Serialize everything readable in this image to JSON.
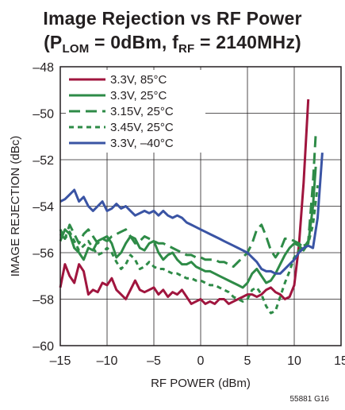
{
  "title_line1": "Image Rejection vs RF Power",
  "title_line2": {
    "open": "(P",
    "sub1": "LOM",
    "mid": " = 0dBm, f",
    "sub2": "RF",
    "close": " = 2140MHz)"
  },
  "figure_id": "55881 G16",
  "chart_data": {
    "type": "line",
    "title": "Image Rejection vs RF Power (PLOM = 0dBm, fRF = 2140MHz)",
    "xlabel": "RF POWER (dBm)",
    "ylabel": "IMAGE REJECTION (dBc)",
    "xlim": [
      -15,
      15
    ],
    "ylim": [
      -60,
      -48
    ],
    "xticks": [
      -15,
      -10,
      -5,
      0,
      5,
      10,
      15
    ],
    "xtick_labels": [
      "–15",
      "–10",
      "–5",
      "0",
      "5",
      "10",
      "15"
    ],
    "yticks": [
      -60,
      -58,
      -56,
      -54,
      -52,
      -50,
      -48
    ],
    "ytick_labels": [
      "–60",
      "–58",
      "–56",
      "–54",
      "–52",
      "–50",
      "–48"
    ],
    "grid": true,
    "legend_position": "top-left",
    "series": [
      {
        "name": "3.3V, 85°C",
        "color": "#a0153e",
        "dash": "solid",
        "points": [
          [
            -15,
            -57.5
          ],
          [
            -14.5,
            -56.5
          ],
          [
            -14,
            -57.0
          ],
          [
            -13.5,
            -57.3
          ],
          [
            -13,
            -56.5
          ],
          [
            -12.5,
            -56.8
          ],
          [
            -12,
            -57.8
          ],
          [
            -11.5,
            -57.6
          ],
          [
            -11,
            -57.7
          ],
          [
            -10.5,
            -57.3
          ],
          [
            -10,
            -57.4
          ],
          [
            -9.5,
            -57.1
          ],
          [
            -9,
            -57.6
          ],
          [
            -8.5,
            -57.8
          ],
          [
            -8,
            -58.0
          ],
          [
            -7.5,
            -57.6
          ],
          [
            -7,
            -57.2
          ],
          [
            -6.5,
            -57.6
          ],
          [
            -6,
            -57.7
          ],
          [
            -5.5,
            -57.6
          ],
          [
            -5,
            -57.5
          ],
          [
            -4.5,
            -57.8
          ],
          [
            -4,
            -57.6
          ],
          [
            -3.5,
            -57.9
          ],
          [
            -3,
            -57.7
          ],
          [
            -2.5,
            -57.8
          ],
          [
            -2,
            -57.6
          ],
          [
            -1.5,
            -57.9
          ],
          [
            -1,
            -58.2
          ],
          [
            -0.5,
            -58.1
          ],
          [
            0,
            -58.0
          ],
          [
            0.5,
            -58.2
          ],
          [
            1,
            -58.1
          ],
          [
            1.5,
            -58.2
          ],
          [
            2,
            -58.0
          ],
          [
            2.5,
            -58.0
          ],
          [
            3,
            -58.2
          ],
          [
            3.5,
            -58.1
          ],
          [
            4,
            -58.0
          ],
          [
            4.5,
            -57.9
          ],
          [
            5,
            -57.8
          ],
          [
            5.5,
            -57.8
          ],
          [
            6,
            -57.9
          ],
          [
            6.5,
            -57.8
          ],
          [
            7,
            -57.6
          ],
          [
            7.5,
            -57.5
          ],
          [
            8,
            -57.7
          ],
          [
            8.5,
            -57.8
          ],
          [
            9,
            -58.0
          ],
          [
            9.5,
            -57.9
          ],
          [
            10,
            -57.4
          ],
          [
            10.5,
            -55.7
          ],
          [
            11,
            -53.0
          ],
          [
            11.5,
            -49.4
          ]
        ]
      },
      {
        "name": "3.3V, 25°C",
        "color": "#2e8b47",
        "dash": "solid",
        "points": [
          [
            -15,
            -55.5
          ],
          [
            -14.5,
            -55.0
          ],
          [
            -14,
            -55.2
          ],
          [
            -13.5,
            -55.8
          ],
          [
            -13,
            -56.0
          ],
          [
            -12.5,
            -56.3
          ],
          [
            -12,
            -55.8
          ],
          [
            -11.5,
            -55.9
          ],
          [
            -11,
            -55.5
          ],
          [
            -10.5,
            -55.4
          ],
          [
            -10,
            -55.3
          ],
          [
            -9.5,
            -55.6
          ],
          [
            -9,
            -56.2
          ],
          [
            -8.5,
            -56.0
          ],
          [
            -8,
            -55.6
          ],
          [
            -7.5,
            -55.3
          ],
          [
            -7,
            -55.4
          ],
          [
            -6.5,
            -55.8
          ],
          [
            -6,
            -55.9
          ],
          [
            -5.5,
            -55.6
          ],
          [
            -5,
            -55.5
          ],
          [
            -4.5,
            -56.0
          ],
          [
            -4,
            -56.3
          ],
          [
            -3.5,
            -56.1
          ],
          [
            -3,
            -56.0
          ],
          [
            -2.5,
            -56.3
          ],
          [
            -2,
            -56.5
          ],
          [
            -1.5,
            -56.5
          ],
          [
            -1,
            -56.4
          ],
          [
            -0.5,
            -56.6
          ],
          [
            0,
            -56.7
          ],
          [
            0.5,
            -56.8
          ],
          [
            1,
            -56.8
          ],
          [
            1.5,
            -56.9
          ],
          [
            2,
            -57.0
          ],
          [
            2.5,
            -57.1
          ],
          [
            3,
            -57.2
          ],
          [
            3.5,
            -57.3
          ],
          [
            4,
            -57.4
          ],
          [
            4.5,
            -57.5
          ],
          [
            5,
            -57.3
          ],
          [
            5.5,
            -56.9
          ],
          [
            6,
            -56.7
          ],
          [
            6.5,
            -57.0
          ],
          [
            7,
            -57.3
          ],
          [
            7.5,
            -57.2
          ],
          [
            8,
            -56.9
          ],
          [
            8.5,
            -56.5
          ],
          [
            9,
            -56.1
          ],
          [
            9.5,
            -55.8
          ],
          [
            10,
            -55.6
          ],
          [
            10.5,
            -55.7
          ],
          [
            11,
            -55.9
          ],
          [
            11.5,
            -55.6
          ],
          [
            12,
            -54.0
          ],
          [
            12.3,
            -52.3
          ]
        ]
      },
      {
        "name": "3.15V, 25°C",
        "color": "#2e8b47",
        "dash": "long",
        "points": [
          [
            -15,
            -55.2
          ],
          [
            -14.5,
            -55.4
          ],
          [
            -14,
            -54.8
          ],
          [
            -13.5,
            -55.2
          ],
          [
            -13,
            -55.6
          ],
          [
            -12.5,
            -55.2
          ],
          [
            -12,
            -55.0
          ],
          [
            -11.5,
            -55.3
          ],
          [
            -11,
            -55.6
          ],
          [
            -10.5,
            -55.4
          ],
          [
            -10,
            -55.5
          ],
          [
            -9.5,
            -55.3
          ],
          [
            -9,
            -55.2
          ],
          [
            -8.5,
            -55.1
          ],
          [
            -8,
            -55.0
          ],
          [
            -7.5,
            -55.3
          ],
          [
            -7,
            -55.6
          ],
          [
            -6.5,
            -55.5
          ],
          [
            -6,
            -55.3
          ],
          [
            -5.5,
            -55.4
          ],
          [
            -5,
            -55.5
          ],
          [
            -4.5,
            -55.6
          ],
          [
            -4,
            -55.6
          ],
          [
            -3.5,
            -55.7
          ],
          [
            -3,
            -55.8
          ],
          [
            -2.5,
            -55.9
          ],
          [
            -2,
            -56.0
          ],
          [
            -1.5,
            -56.1
          ],
          [
            -1,
            -56.1
          ],
          [
            -0.5,
            -56.2
          ],
          [
            0,
            -56.2
          ],
          [
            0.5,
            -56.3
          ],
          [
            1,
            -56.3
          ],
          [
            1.5,
            -56.3
          ],
          [
            2,
            -56.4
          ],
          [
            2.5,
            -56.4
          ],
          [
            3,
            -56.5
          ],
          [
            3.5,
            -56.6
          ],
          [
            4,
            -56.4
          ],
          [
            4.5,
            -56.2
          ],
          [
            5,
            -56.0
          ],
          [
            5.5,
            -55.6
          ],
          [
            6,
            -55.0
          ],
          [
            6.5,
            -54.8
          ],
          [
            7,
            -55.3
          ],
          [
            7.5,
            -55.9
          ],
          [
            8,
            -56.2
          ],
          [
            8.5,
            -55.9
          ],
          [
            9,
            -55.4
          ],
          [
            9.5,
            -55.4
          ],
          [
            10,
            -55.5
          ],
          [
            10.5,
            -55.6
          ],
          [
            11,
            -55.8
          ],
          [
            11.5,
            -55.5
          ],
          [
            12,
            -53.0
          ],
          [
            12.3,
            -50.9
          ]
        ]
      },
      {
        "name": "3.45V, 25°C",
        "color": "#2e8b47",
        "dash": "short",
        "points": [
          [
            -15,
            -55.0
          ],
          [
            -14.5,
            -55.4
          ],
          [
            -14,
            -55.1
          ],
          [
            -13.5,
            -55.5
          ],
          [
            -13,
            -55.9
          ],
          [
            -12.5,
            -55.7
          ],
          [
            -12,
            -55.5
          ],
          [
            -11.5,
            -55.8
          ],
          [
            -11,
            -56.1
          ],
          [
            -10.5,
            -56.0
          ],
          [
            -10,
            -55.8
          ],
          [
            -9.5,
            -56.0
          ],
          [
            -9,
            -56.4
          ],
          [
            -8.5,
            -56.7
          ],
          [
            -8,
            -56.5
          ],
          [
            -7.5,
            -56.1
          ],
          [
            -7,
            -56.3
          ],
          [
            -6.5,
            -56.7
          ],
          [
            -6,
            -56.6
          ],
          [
            -5.5,
            -56.4
          ],
          [
            -5,
            -56.6
          ],
          [
            -4.5,
            -56.7
          ],
          [
            -4,
            -56.7
          ],
          [
            -3.5,
            -56.8
          ],
          [
            -3,
            -56.9
          ],
          [
            -2.5,
            -56.9
          ],
          [
            -2,
            -57.0
          ],
          [
            -1.5,
            -57.1
          ],
          [
            -1,
            -57.1
          ],
          [
            -0.5,
            -57.2
          ],
          [
            0,
            -57.2
          ],
          [
            0.5,
            -57.3
          ],
          [
            1,
            -57.4
          ],
          [
            1.5,
            -57.4
          ],
          [
            2,
            -57.5
          ],
          [
            2.5,
            -57.6
          ],
          [
            3,
            -57.7
          ],
          [
            3.5,
            -57.9
          ],
          [
            4,
            -58.0
          ],
          [
            4.5,
            -58.1
          ],
          [
            5,
            -58.0
          ],
          [
            5.5,
            -57.6
          ],
          [
            6,
            -57.5
          ],
          [
            6.5,
            -57.8
          ],
          [
            7,
            -58.3
          ],
          [
            7.5,
            -58.6
          ],
          [
            8,
            -58.5
          ],
          [
            8.5,
            -57.9
          ],
          [
            9,
            -57.3
          ],
          [
            9.5,
            -56.8
          ],
          [
            10,
            -56.2
          ],
          [
            10.5,
            -55.9
          ],
          [
            11,
            -55.7
          ],
          [
            11.5,
            -55.6
          ],
          [
            12,
            -54.8
          ],
          [
            12.5,
            -53.1
          ]
        ]
      },
      {
        "name": "3.3V, –40°C",
        "color": "#3a54a4",
        "dash": "solid",
        "points": [
          [
            -15,
            -53.8
          ],
          [
            -14.5,
            -53.7
          ],
          [
            -14,
            -53.5
          ],
          [
            -13.5,
            -53.3
          ],
          [
            -13,
            -53.8
          ],
          [
            -12.5,
            -53.6
          ],
          [
            -12,
            -54.0
          ],
          [
            -11.5,
            -54.2
          ],
          [
            -11,
            -54.0
          ],
          [
            -10.5,
            -53.8
          ],
          [
            -10,
            -54.2
          ],
          [
            -9.5,
            -54.1
          ],
          [
            -9,
            -53.9
          ],
          [
            -8.5,
            -54.1
          ],
          [
            -8,
            -54.0
          ],
          [
            -7.5,
            -54.2
          ],
          [
            -7,
            -54.4
          ],
          [
            -6.5,
            -54.3
          ],
          [
            -6,
            -54.2
          ],
          [
            -5.5,
            -54.3
          ],
          [
            -5,
            -54.2
          ],
          [
            -4.5,
            -54.4
          ],
          [
            -4,
            -54.2
          ],
          [
            -3.5,
            -54.4
          ],
          [
            -3,
            -54.5
          ],
          [
            -2.5,
            -54.4
          ],
          [
            -2,
            -54.5
          ],
          [
            -1.5,
            -54.7
          ],
          [
            -1,
            -54.8
          ],
          [
            -0.5,
            -54.9
          ],
          [
            0,
            -55.0
          ],
          [
            0.5,
            -55.1
          ],
          [
            1,
            -55.2
          ],
          [
            1.5,
            -55.3
          ],
          [
            2,
            -55.4
          ],
          [
            2.5,
            -55.5
          ],
          [
            3,
            -55.6
          ],
          [
            3.5,
            -55.7
          ],
          [
            4,
            -55.8
          ],
          [
            4.5,
            -55.9
          ],
          [
            5,
            -56.0
          ],
          [
            5.5,
            -56.2
          ],
          [
            6,
            -56.4
          ],
          [
            6.5,
            -56.7
          ],
          [
            7,
            -56.8
          ],
          [
            7.5,
            -56.8
          ],
          [
            8,
            -56.9
          ],
          [
            8.5,
            -56.9
          ],
          [
            9,
            -56.7
          ],
          [
            9.5,
            -56.5
          ],
          [
            10,
            -56.3
          ],
          [
            10.5,
            -56.0
          ],
          [
            11,
            -55.8
          ],
          [
            11.5,
            -55.7
          ],
          [
            12,
            -55.8
          ],
          [
            12.5,
            -54.5
          ],
          [
            13,
            -51.7
          ]
        ]
      }
    ]
  }
}
